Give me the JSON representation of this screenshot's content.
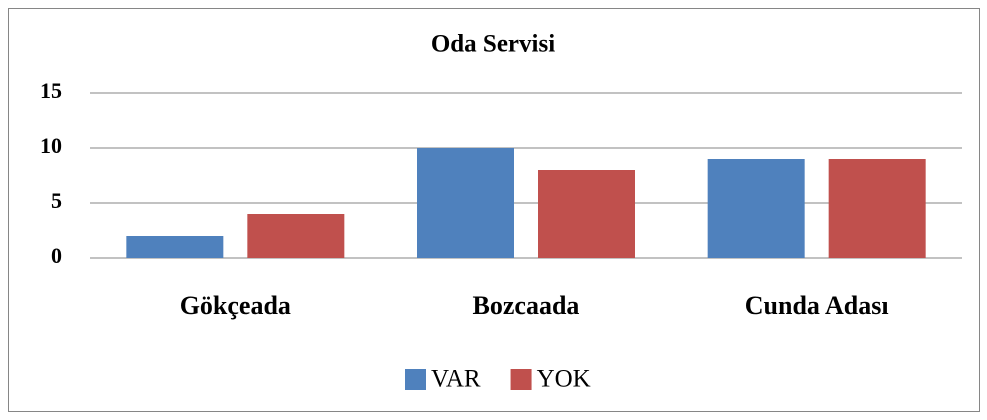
{
  "chart_data": {
    "type": "bar",
    "title": "Oda Servisi",
    "categories": [
      "Gökçeada",
      "Bozcaada",
      "Cunda Adası"
    ],
    "series": [
      {
        "name": "VAR",
        "color": "#4f81bd",
        "values": [
          2,
          10,
          9
        ]
      },
      {
        "name": "YOK",
        "color": "#c0504d",
        "values": [
          4,
          8,
          9
        ]
      }
    ],
    "ylim": [
      0,
      15
    ],
    "yticks": [
      0,
      5,
      10,
      15
    ],
    "grid": true,
    "legend": "bottom"
  }
}
